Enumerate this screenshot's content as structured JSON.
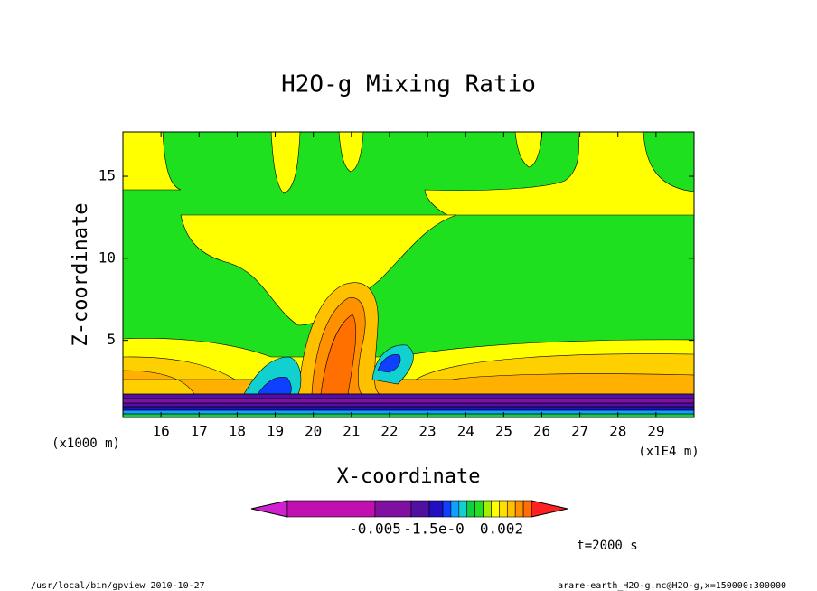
{
  "chart_data": {
    "type": "contour",
    "title": "H2O-g Mixing Ratio",
    "x_label": "X-coordinate",
    "y_label": "Z-coordinate",
    "x_unit_left": "(x1000 m)",
    "x_unit_right": "(x1E4 m)",
    "xlim": [
      15,
      30
    ],
    "xticks": [
      16,
      17,
      18,
      19,
      20,
      21,
      22,
      23,
      24,
      25,
      26,
      27,
      28,
      29
    ],
    "ylim": [
      0.3,
      17.7
    ],
    "yticks": [
      5,
      10,
      15
    ],
    "colorbar_colors": [
      "#d020d0",
      "#c010b0",
      "#8010a0",
      "#5010a0",
      "#2010c0",
      "#1040ff",
      "#10a0ff",
      "#10d0d0",
      "#10d040",
      "#20e020",
      "#a0f000",
      "#ffff00",
      "#ffe000",
      "#ffc000",
      "#ff9000",
      "#ff7000",
      "#ff2020"
    ],
    "colorbar_labels": [
      "-0.005",
      "-1.5e-0",
      "0.002"
    ],
    "annotation": "t=2000 s",
    "footer_left": "/usr/local/bin/gpview  2010-10-27",
    "footer_right": "arare-earth_H2O-g.nc@H2O-g,x=150000:300000"
  }
}
